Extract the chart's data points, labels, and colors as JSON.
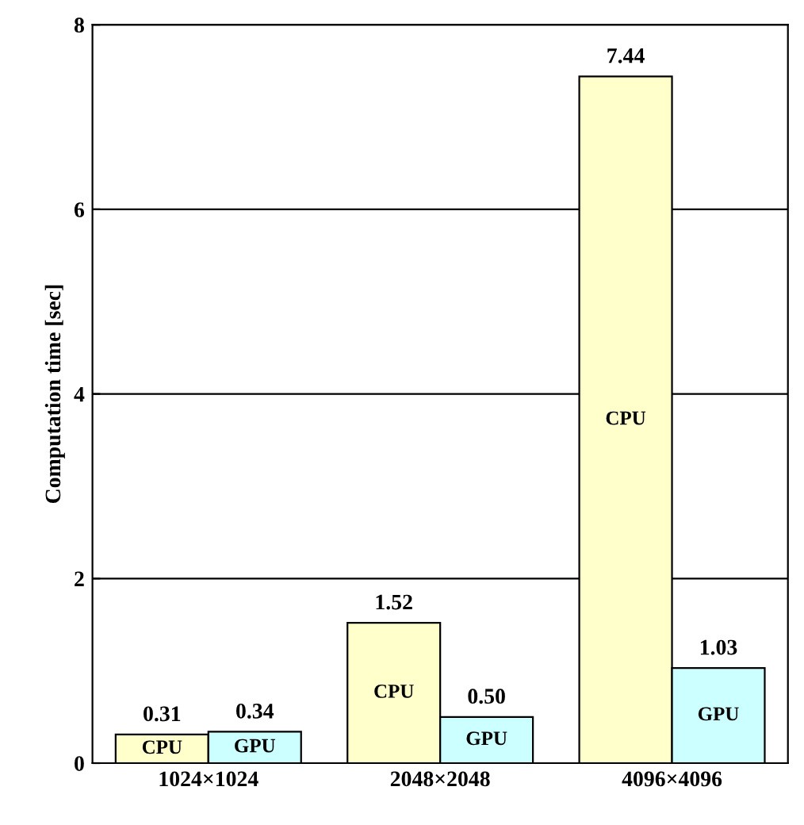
{
  "chart_data": {
    "type": "bar",
    "ylabel": "Computation time [sec]",
    "categories": [
      "1024×1024",
      "2048×2048",
      "4096×4096"
    ],
    "series": [
      {
        "name": "CPU",
        "color": "#ffffcc",
        "values": [
          0.31,
          1.52,
          7.44
        ],
        "value_labels": [
          "0.31",
          "1.52",
          "7.44"
        ]
      },
      {
        "name": "GPU",
        "color": "#ccffff",
        "values": [
          0.34,
          0.5,
          1.03
        ],
        "value_labels": [
          "0.34",
          "0.50",
          "1.03"
        ]
      }
    ],
    "ylim": [
      0,
      8
    ],
    "yticks": [
      0,
      2,
      4,
      6,
      8
    ],
    "grid": "y",
    "legend": false
  }
}
